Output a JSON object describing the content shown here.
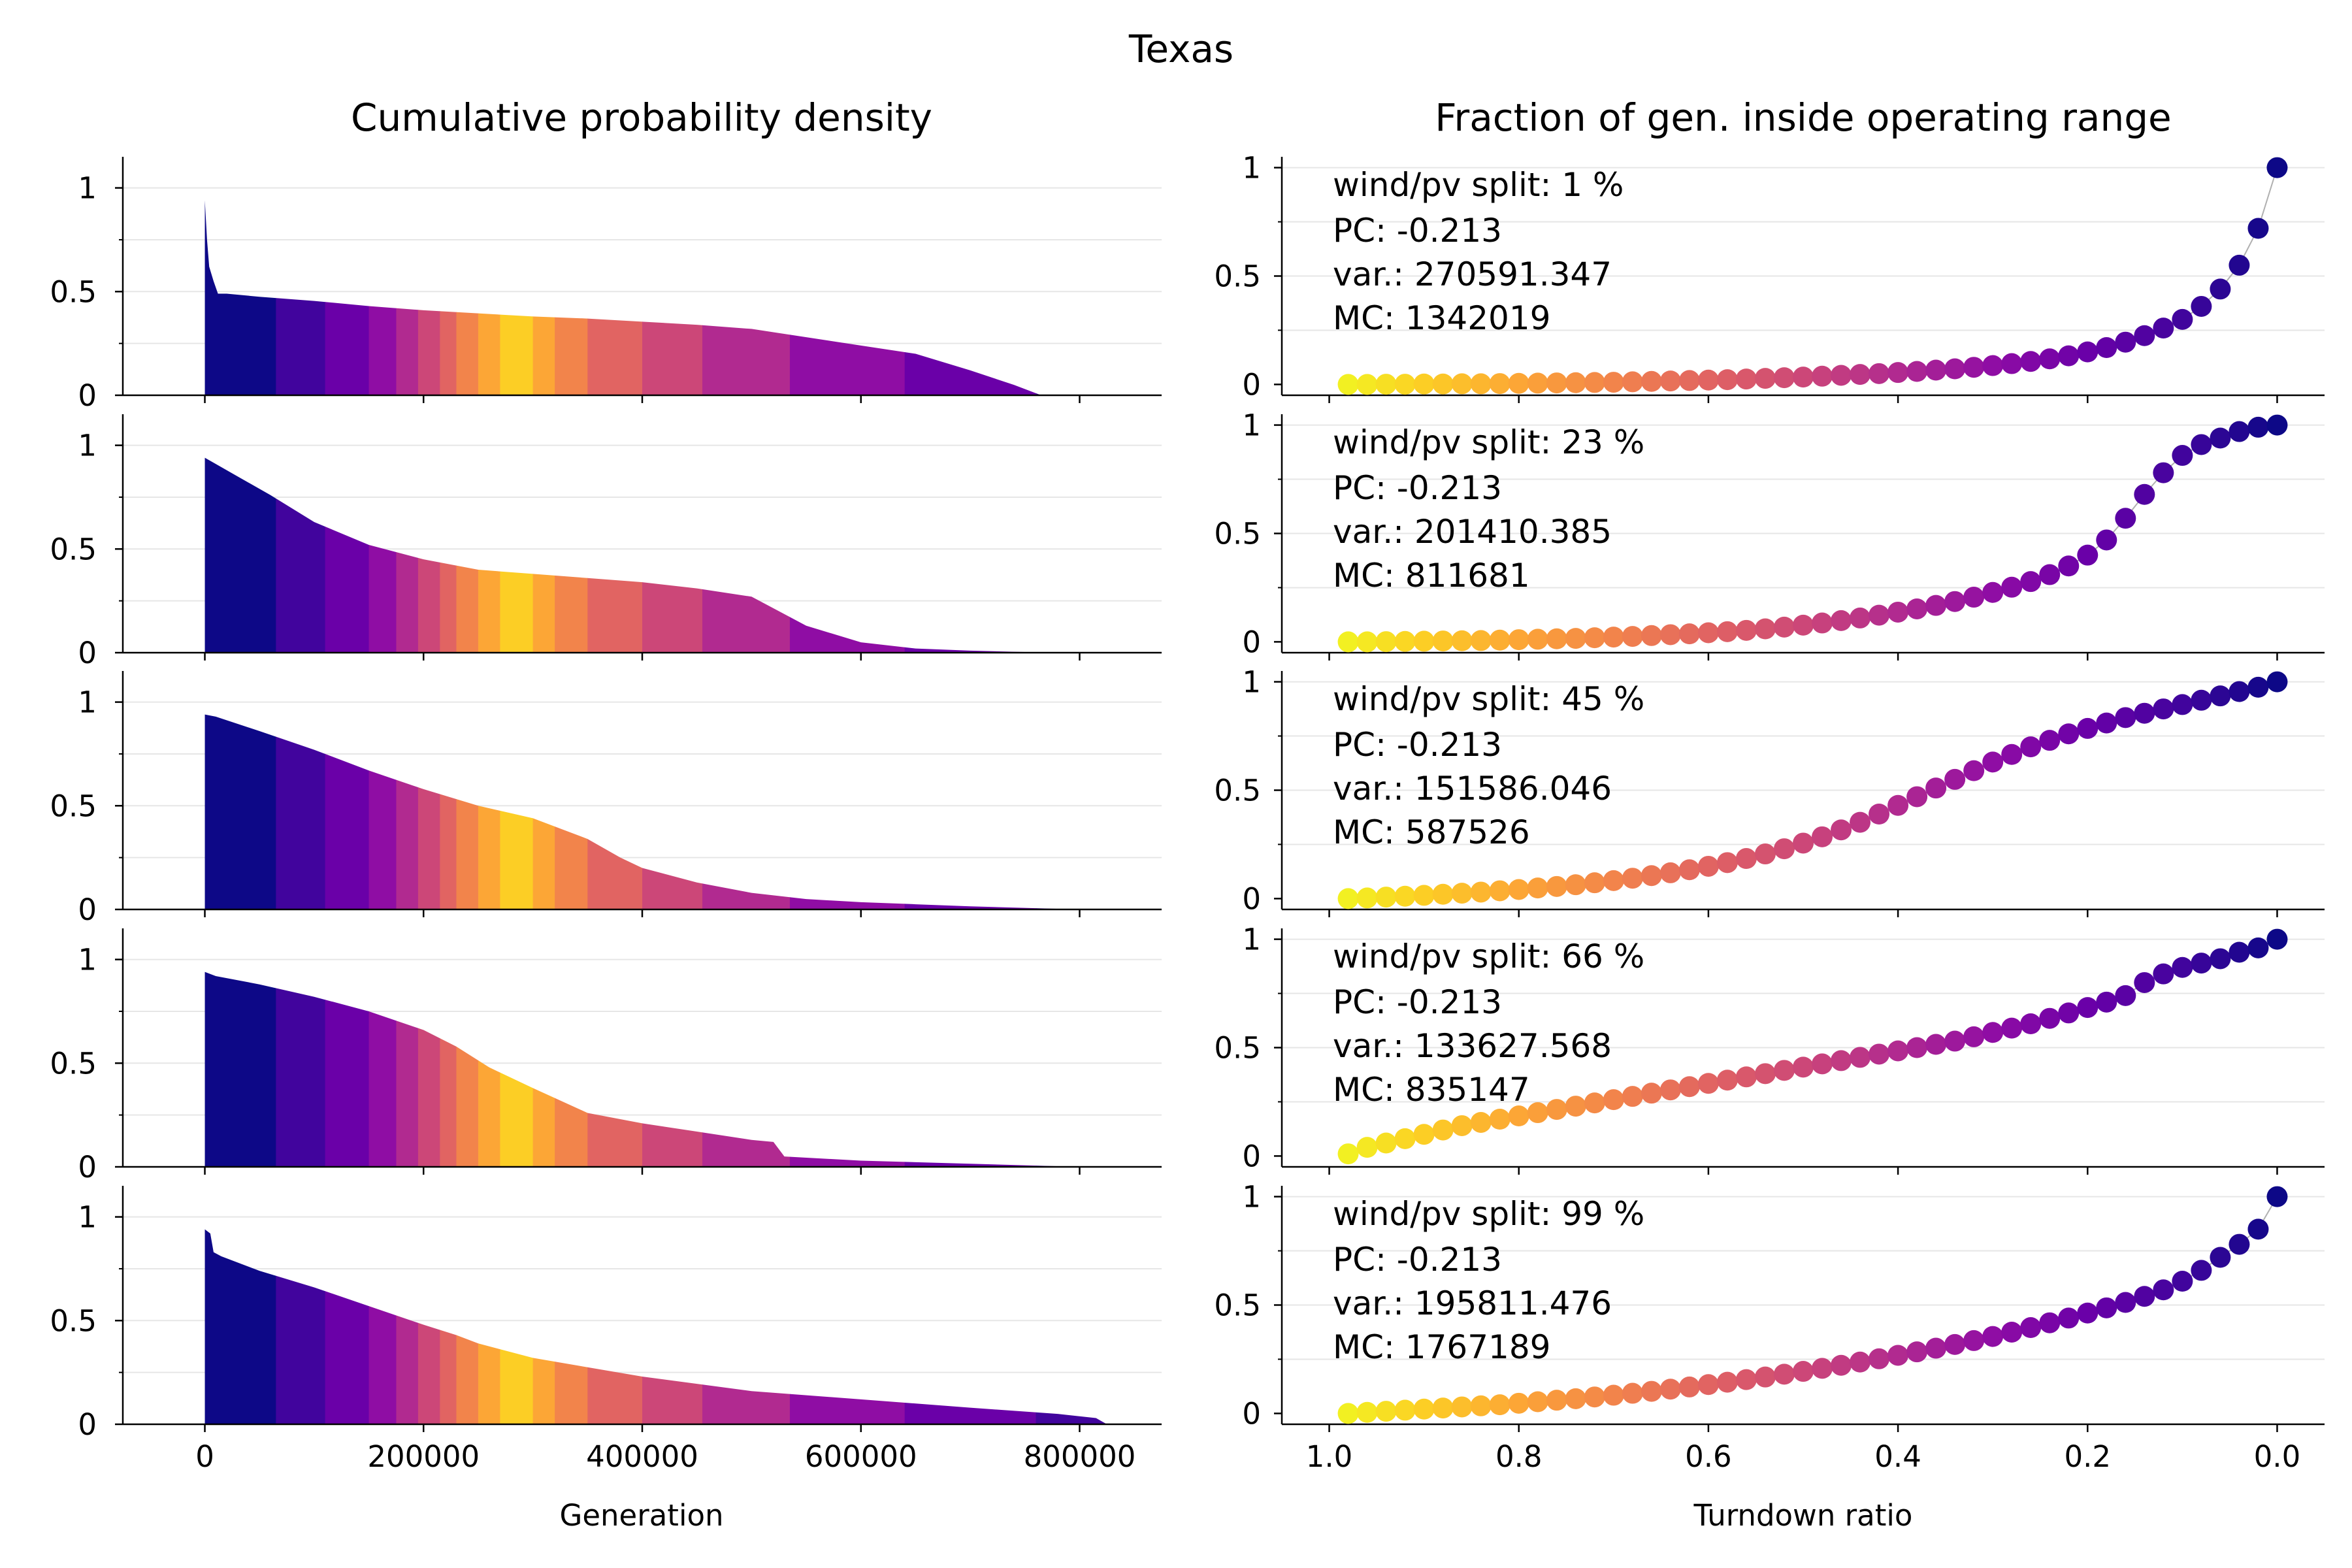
{
  "figure": {
    "title": "Texas",
    "left_title": "Cumulative probability density",
    "right_title": "Fraction of gen. inside operating range",
    "left_xlabel": "Generation",
    "right_xlabel": "Turndown ratio"
  },
  "chart_data": [
    {
      "type": "area",
      "title": "Cumulative probability density",
      "xlabel": "Generation",
      "ylabel": "",
      "xlim": [
        -75000,
        875000
      ],
      "ylim": [
        0,
        1.15
      ],
      "xticks": [
        0,
        200000,
        400000,
        600000,
        800000
      ],
      "xtick_labels": [
        "0",
        "200000",
        "400000",
        "600000",
        "800000"
      ],
      "yticks": [
        0,
        0.5,
        1
      ],
      "ytick_labels": [
        "0",
        "0.5",
        "1"
      ],
      "grid": "horizontal",
      "band_colors": [
        "#0d0887",
        "#41049d",
        "#6a00a8",
        "#8f0da4",
        "#b12a90",
        "#cc4778",
        "#e16462",
        "#f2844b",
        "#fca636",
        "#fcce25",
        "#fca636",
        "#f2844b",
        "#e16462",
        "#cc4778",
        "#b12a90",
        "#8f0da4",
        "#6a00a8",
        "#41049d",
        "#0d0887"
      ],
      "band_edges": [
        0,
        65000,
        110000,
        150000,
        175000,
        195000,
        215000,
        230000,
        250000,
        270000,
        300000,
        320000,
        350000,
        400000,
        455000,
        535000,
        640000,
        760000,
        900000
      ],
      "series": [
        {
          "label": "wind/pv split: 1 %",
          "x": [
            0,
            2000,
            4000,
            8000,
            12000,
            20000,
            50000,
            100000,
            150000,
            200000,
            250000,
            300000,
            350000,
            400000,
            450000,
            500000,
            550000,
            600000,
            650000,
            700000,
            740000,
            760000,
            765000
          ],
          "y": [
            0.94,
            0.75,
            0.62,
            0.55,
            0.49,
            0.49,
            0.475,
            0.455,
            0.43,
            0.41,
            0.395,
            0.38,
            0.37,
            0.355,
            0.34,
            0.32,
            0.28,
            0.24,
            0.2,
            0.12,
            0.05,
            0.01,
            0
          ]
        },
        {
          "label": "wind/pv split: 23 %",
          "x": [
            0,
            10000,
            30000,
            60000,
            100000,
            150000,
            200000,
            250000,
            300000,
            350000,
            400000,
            450000,
            500000,
            550000,
            600000,
            650000,
            700000,
            750000,
            785000
          ],
          "y": [
            0.94,
            0.91,
            0.85,
            0.76,
            0.63,
            0.52,
            0.45,
            0.4,
            0.38,
            0.36,
            0.34,
            0.31,
            0.27,
            0.13,
            0.05,
            0.02,
            0.01,
            0.003,
            0
          ]
        },
        {
          "label": "wind/pv split: 45 %",
          "x": [
            0,
            10000,
            50000,
            100000,
            150000,
            200000,
            250000,
            300000,
            350000,
            380000,
            400000,
            450000,
            500000,
            550000,
            600000,
            650000,
            700000,
            800000
          ],
          "y": [
            0.94,
            0.93,
            0.86,
            0.77,
            0.67,
            0.58,
            0.5,
            0.44,
            0.34,
            0.25,
            0.2,
            0.13,
            0.08,
            0.05,
            0.035,
            0.025,
            0.015,
            0
          ]
        },
        {
          "label": "wind/pv split: 66 %",
          "x": [
            0,
            10000,
            50000,
            100000,
            150000,
            200000,
            230000,
            260000,
            300000,
            350000,
            400000,
            450000,
            500000,
            520000,
            530000,
            600000,
            700000,
            800000
          ],
          "y": [
            0.94,
            0.92,
            0.88,
            0.82,
            0.75,
            0.66,
            0.58,
            0.48,
            0.38,
            0.26,
            0.21,
            0.17,
            0.13,
            0.12,
            0.05,
            0.03,
            0.015,
            0
          ]
        },
        {
          "label": "wind/pv split: 99 %",
          "x": [
            0,
            5000,
            8000,
            15000,
            50000,
            100000,
            150000,
            200000,
            230000,
            250000,
            300000,
            400000,
            500000,
            600000,
            700000,
            780000,
            815000,
            820000,
            825000
          ],
          "y": [
            0.94,
            0.92,
            0.83,
            0.81,
            0.74,
            0.66,
            0.57,
            0.48,
            0.43,
            0.39,
            0.32,
            0.23,
            0.16,
            0.12,
            0.08,
            0.05,
            0.03,
            0.015,
            0
          ]
        }
      ]
    },
    {
      "type": "scatter",
      "title": "Fraction of gen. inside operating range",
      "xlabel": "Turndown ratio",
      "ylabel": "",
      "xlim": [
        1.05,
        -0.05
      ],
      "ylim": [
        -0.05,
        1.05
      ],
      "xticks": [
        1.0,
        0.8,
        0.6,
        0.4,
        0.2,
        0.0
      ],
      "xtick_labels": [
        "1.0",
        "0.8",
        "0.6",
        "0.4",
        "0.2",
        "0.0"
      ],
      "yticks": [
        0,
        0.5,
        1
      ],
      "ytick_labels": [
        "0",
        "0.5",
        "1"
      ],
      "grid": "horizontal",
      "x": [
        0.98,
        0.96,
        0.94,
        0.92,
        0.9,
        0.88,
        0.86,
        0.84,
        0.82,
        0.8,
        0.78,
        0.76,
        0.74,
        0.72,
        0.7,
        0.68,
        0.66,
        0.64,
        0.62,
        0.6,
        0.58,
        0.56,
        0.54,
        0.52,
        0.5,
        0.48,
        0.46,
        0.44,
        0.42,
        0.4,
        0.38,
        0.36,
        0.34,
        0.32,
        0.3,
        0.28,
        0.26,
        0.24,
        0.22,
        0.2,
        0.18,
        0.16,
        0.14,
        0.12,
        0.1,
        0.08,
        0.06,
        0.04,
        0.02,
        0.0
      ],
      "series": [
        {
          "name": "wind/pv split: 1 %",
          "annotation": {
            "split": "wind/pv split: 1 %",
            "pc": "PC: -0.213",
            "var": "var.: 270591.347",
            "mc": "MC: 1342019"
          },
          "y": [
            0,
            0,
            0.001,
            0.001,
            0.002,
            0.002,
            0.003,
            0.003,
            0.004,
            0.005,
            0.006,
            0.007,
            0.008,
            0.009,
            0.01,
            0.012,
            0.014,
            0.016,
            0.018,
            0.02,
            0.022,
            0.025,
            0.028,
            0.031,
            0.034,
            0.038,
            0.042,
            0.046,
            0.05,
            0.055,
            0.06,
            0.066,
            0.072,
            0.079,
            0.087,
            0.096,
            0.106,
            0.118,
            0.132,
            0.15,
            0.17,
            0.195,
            0.225,
            0.26,
            0.3,
            0.36,
            0.44,
            0.55,
            0.72,
            1.0
          ]
        },
        {
          "name": "wind/pv split: 23 %",
          "annotation": {
            "split": "wind/pv split: 23 %",
            "pc": "PC: -0.213",
            "var": "var.: 201410.385",
            "mc": "MC: 811681"
          },
          "y": [
            0,
            0,
            0.001,
            0.002,
            0.003,
            0.004,
            0.005,
            0.006,
            0.008,
            0.01,
            0.012,
            0.014,
            0.016,
            0.019,
            0.022,
            0.025,
            0.029,
            0.033,
            0.037,
            0.042,
            0.047,
            0.053,
            0.06,
            0.068,
            0.077,
            0.087,
            0.098,
            0.11,
            0.123,
            0.137,
            0.152,
            0.168,
            0.186,
            0.206,
            0.228,
            0.252,
            0.278,
            0.31,
            0.35,
            0.4,
            0.47,
            0.57,
            0.68,
            0.78,
            0.86,
            0.91,
            0.94,
            0.97,
            0.99,
            1.0
          ]
        },
        {
          "name": "wind/pv split: 45 %",
          "annotation": {
            "split": "wind/pv split: 45 %",
            "pc": "PC: -0.213",
            "var": "var.: 151586.046",
            "mc": "MC: 587526"
          },
          "y": [
            0,
            0.003,
            0.007,
            0.011,
            0.015,
            0.02,
            0.025,
            0.03,
            0.036,
            0.042,
            0.049,
            0.056,
            0.064,
            0.073,
            0.083,
            0.094,
            0.106,
            0.119,
            0.133,
            0.149,
            0.166,
            0.185,
            0.206,
            0.23,
            0.256,
            0.285,
            0.317,
            0.352,
            0.39,
            0.43,
            0.47,
            0.51,
            0.55,
            0.59,
            0.63,
            0.665,
            0.7,
            0.73,
            0.76,
            0.785,
            0.81,
            0.835,
            0.855,
            0.875,
            0.895,
            0.915,
            0.935,
            0.955,
            0.975,
            1.0
          ]
        },
        {
          "name": "wind/pv split: 66 %",
          "annotation": {
            "split": "wind/pv split: 66 %",
            "pc": "PC: -0.213",
            "var": "var.: 133627.568",
            "mc": "MC: 835147"
          },
          "y": [
            0.01,
            0.04,
            0.06,
            0.08,
            0.1,
            0.12,
            0.14,
            0.155,
            0.17,
            0.185,
            0.2,
            0.215,
            0.23,
            0.245,
            0.26,
            0.275,
            0.29,
            0.305,
            0.32,
            0.335,
            0.35,
            0.365,
            0.38,
            0.395,
            0.41,
            0.425,
            0.44,
            0.455,
            0.47,
            0.485,
            0.5,
            0.515,
            0.53,
            0.55,
            0.57,
            0.59,
            0.61,
            0.635,
            0.66,
            0.685,
            0.71,
            0.74,
            0.8,
            0.84,
            0.87,
            0.89,
            0.91,
            0.94,
            0.96,
            1.0
          ]
        },
        {
          "name": "wind/pv split: 99 %",
          "annotation": {
            "split": "wind/pv split: 99 %",
            "pc": "PC: -0.213",
            "var": "var.: 195811.476",
            "mc": "MC: 1767189"
          },
          "y": [
            0,
            0.005,
            0.01,
            0.015,
            0.02,
            0.025,
            0.03,
            0.035,
            0.04,
            0.047,
            0.054,
            0.061,
            0.068,
            0.076,
            0.084,
            0.093,
            0.102,
            0.112,
            0.122,
            0.133,
            0.144,
            0.156,
            0.168,
            0.181,
            0.194,
            0.208,
            0.222,
            0.237,
            0.252,
            0.268,
            0.284,
            0.301,
            0.318,
            0.336,
            0.355,
            0.375,
            0.396,
            0.418,
            0.44,
            0.463,
            0.487,
            0.512,
            0.54,
            0.57,
            0.61,
            0.66,
            0.72,
            0.78,
            0.85,
            1.0
          ]
        }
      ]
    }
  ]
}
